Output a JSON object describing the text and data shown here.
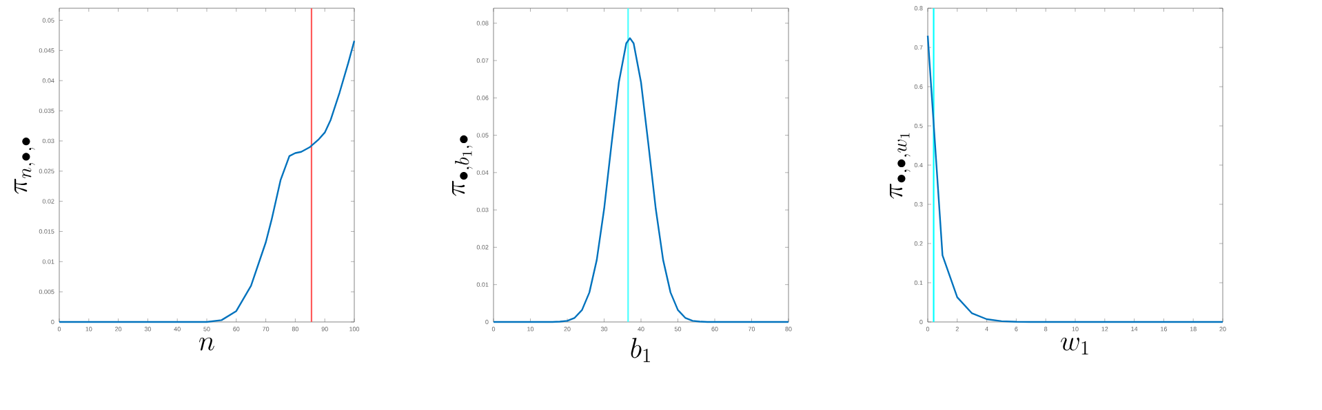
{
  "chart_data": [
    {
      "type": "line",
      "xlabel": "n",
      "ylabel": "\\pi_{n,\\bullet,\\bullet}",
      "xlim": [
        0,
        100
      ],
      "ylim": [
        0,
        0.052
      ],
      "xticks": [
        0,
        10,
        20,
        30,
        40,
        50,
        60,
        70,
        80,
        90,
        100
      ],
      "yticks": [
        0,
        0.005,
        0.01,
        0.015,
        0.02,
        0.025,
        0.03,
        0.035,
        0.04,
        0.045,
        0.05
      ],
      "series": [
        {
          "color": "#0072bd",
          "x": [
            0,
            50,
            55,
            60,
            65,
            70,
            72,
            75,
            78,
            80,
            82,
            85,
            88,
            90,
            92,
            95,
            98,
            100
          ],
          "values": [
            0,
            0,
            0.0003,
            0.0018,
            0.006,
            0.0132,
            0.017,
            0.0235,
            0.0275,
            0.028,
            0.0282,
            0.029,
            0.0303,
            0.0314,
            0.0335,
            0.038,
            0.043,
            0.0466
          ]
        }
      ],
      "ref_lines": [
        {
          "axis": "x",
          "value": 85.5,
          "color": "#ff5a5a"
        }
      ]
    },
    {
      "type": "line",
      "xlabel": "b_1",
      "ylabel": "\\pi_{\\bullet,b_1,\\bullet}",
      "xlim": [
        0,
        80
      ],
      "ylim": [
        0,
        0.084
      ],
      "xticks": [
        0,
        10,
        20,
        30,
        40,
        50,
        60,
        70,
        80
      ],
      "yticks": [
        0,
        0.01,
        0.02,
        0.03,
        0.04,
        0.05,
        0.06,
        0.07,
        0.08
      ],
      "series": [
        {
          "color": "#0072bd",
          "x": [
            0,
            16,
            18,
            20,
            22,
            24,
            26,
            28,
            30,
            32,
            34,
            36,
            37,
            38,
            40,
            42,
            44,
            46,
            48,
            50,
            52,
            54,
            56,
            58,
            80
          ],
          "values": [
            0,
            0,
            0.0001,
            0.0003,
            0.0011,
            0.0032,
            0.0079,
            0.0166,
            0.0303,
            0.0476,
            0.0642,
            0.0746,
            0.076,
            0.0746,
            0.0642,
            0.0476,
            0.0303,
            0.0166,
            0.0079,
            0.0032,
            0.0011,
            0.0003,
            0.0001,
            0,
            0
          ]
        }
      ],
      "ref_lines": [
        {
          "axis": "x",
          "value": 36.5,
          "color": "#4dffff"
        }
      ]
    },
    {
      "type": "line",
      "xlabel": "w_1",
      "ylabel": "\\pi_{\\bullet,\\bullet,w_1}",
      "xlim": [
        0,
        20
      ],
      "ylim": [
        0,
        0.8
      ],
      "xticks": [
        0,
        2,
        4,
        6,
        8,
        10,
        12,
        14,
        16,
        18,
        20
      ],
      "yticks": [
        0,
        0.1,
        0.2,
        0.3,
        0.4,
        0.5,
        0.6,
        0.7,
        0.8
      ],
      "series": [
        {
          "color": "#0072bd",
          "x": [
            0,
            1,
            2,
            3,
            4,
            5,
            6,
            7,
            8,
            9,
            10,
            11,
            12,
            13,
            14,
            15,
            16,
            17,
            18,
            19,
            20
          ],
          "values": [
            0.73,
            0.17,
            0.063,
            0.022,
            0.007,
            0.002,
            0.0005,
            0,
            0,
            0,
            0,
            0,
            0,
            0,
            0,
            0,
            0,
            0,
            0,
            0,
            0
          ]
        }
      ],
      "ref_lines": [
        {
          "axis": "x",
          "value": 0.4,
          "color": "#00ffff"
        }
      ]
    }
  ]
}
